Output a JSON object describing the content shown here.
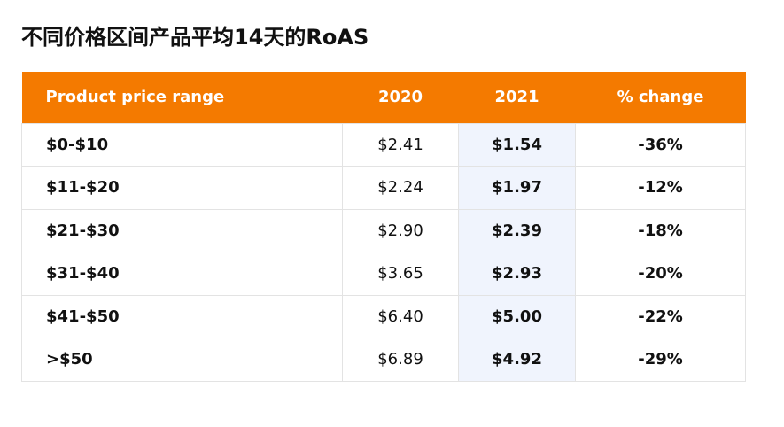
{
  "title": "不同价格区间产品平均14天的RoAS",
  "table": {
    "headers": [
      "Product price range",
      "2020",
      "2021",
      "% change"
    ],
    "rows": [
      {
        "range": "$0-$10",
        "y2020": "$2.41",
        "y2021": "$1.54",
        "change": "-36%"
      },
      {
        "range": "$11-$20",
        "y2020": "$2.24",
        "y2021": "$1.97",
        "change": "-12%"
      },
      {
        "range": "$21-$30",
        "y2020": "$2.90",
        "y2021": "$2.39",
        "change": "-18%"
      },
      {
        "range": "$31-$40",
        "y2020": "$3.65",
        "y2021": "$2.93",
        "change": "-20%"
      },
      {
        "range": "$41-$50",
        "y2020": "$6.40",
        "y2021": "$5.00",
        "change": "-22%"
      },
      {
        "range": ">$50",
        "y2020": "$6.89",
        "y2021": "$4.92",
        "change": "-29%"
      }
    ]
  },
  "colors": {
    "header_bg": "#f47a00",
    "highlight_col_bg": "#f0f4fd",
    "highlight_text": "#1436c8",
    "negative_text": "#e0301e"
  }
}
